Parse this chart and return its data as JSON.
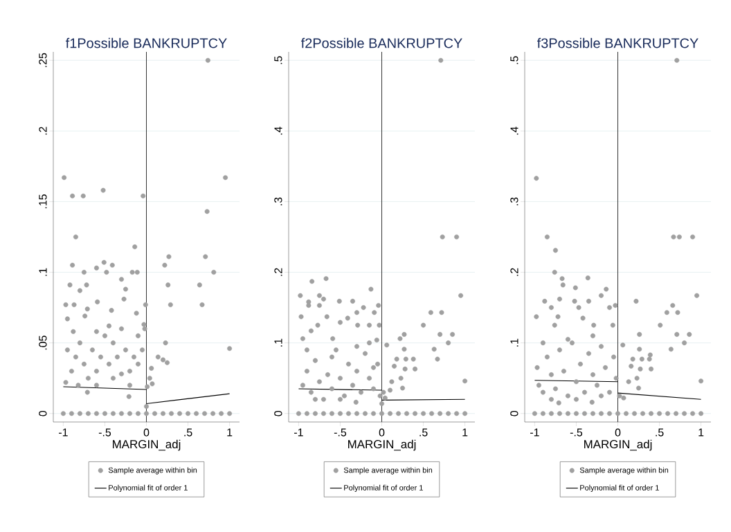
{
  "chart_data": [
    {
      "type": "scatter",
      "title": "f1Possible BANKRUPTCY",
      "xlabel": "MARGIN_adj",
      "xlim": [
        -1.12,
        1.12
      ],
      "ylim": [
        -0.006,
        0.256
      ],
      "xticks": [
        {
          "value": -1,
          "label": "-1"
        },
        {
          "value": -0.5,
          "label": "-.5"
        },
        {
          "value": 0,
          "label": "0"
        },
        {
          "value": 0.5,
          "label": ".5"
        },
        {
          "value": 1,
          "label": "1"
        }
      ],
      "yticks": [
        {
          "value": 0,
          "label": "0"
        },
        {
          "value": 0.05,
          "label": ".05"
        },
        {
          "value": 0.1,
          "label": ".1"
        },
        {
          "value": 0.15,
          "label": ".15"
        },
        {
          "value": 0.2,
          "label": ".2"
        },
        {
          "value": 0.25,
          "label": ".25"
        }
      ],
      "grid": "y",
      "legend": "bottom",
      "ref_lines": [
        {
          "axis": "x",
          "value": 0,
          "color": "#000000"
        }
      ],
      "series": [
        {
          "name": "Sample average within bin",
          "type": "scatter",
          "marker": "circle",
          "color": "#a0a0a0",
          "x": [
            0.74,
            -0.99,
            0.95,
            -0.89,
            -0.76,
            -0.52,
            -0.04,
            0.73,
            -0.85,
            -0.14,
            0.27,
            0.71,
            0.22,
            -0.89,
            -0.41,
            0.81,
            -0.75,
            -0.48,
            -0.17,
            -0.11,
            -0.51,
            -0.6,
            0.26,
            0.64,
            -0.92,
            -0.72,
            -0.3,
            -0.25,
            -0.8,
            0.29,
            0.67,
            -0.01,
            -0.97,
            -0.87,
            -0.59,
            -0.27,
            -0.71,
            -0.42,
            -0.12,
            -0.95,
            -0.74,
            -0.03,
            0.23,
            1.0,
            0.14,
            0.25,
            0.2,
            0.06,
            0.04,
            0.07,
            0.01,
            0,
            -0.21,
            -0.71,
            -0.95,
            -0.9,
            -0.85,
            -0.8,
            -0.75,
            -0.7,
            -0.65,
            -0.6,
            -0.55,
            -0.5,
            -0.45,
            -0.4,
            -0.35,
            -0.3,
            -0.25,
            -0.2,
            -0.15,
            -0.1,
            -0.05,
            -0.02,
            -0.97,
            -0.82,
            -0.6,
            -0.4,
            -0.2,
            -0.6,
            -0.45,
            -0.3,
            -0.1,
            -0.88,
            -1,
            -0.9,
            -0.8,
            -0.7,
            -0.6,
            -0.5,
            -0.4,
            -0.3,
            -0.2,
            -0.1,
            0,
            0.1,
            0.2,
            0.3,
            0.4,
            0.5,
            0.6,
            0.7,
            0.8,
            0.9,
            1
          ],
          "values": [
            0.25,
            0.167,
            0.167,
            0.154,
            0.154,
            0.158,
            0.154,
            0.143,
            0.125,
            0.118,
            0.111,
            0.111,
            0.105,
            0.105,
            0.105,
            0.1,
            0.1,
            0.1,
            0.1,
            0.1,
            0.107,
            0.103,
            0.091,
            0.091,
            0.091,
            0.091,
            0.095,
            0.088,
            0.087,
            0.077,
            0.077,
            0.077,
            0.077,
            0.077,
            0.079,
            0.081,
            0.074,
            0.073,
            0.071,
            0.067,
            0.069,
            0.063,
            0.05,
            0.046,
            0.04,
            0.036,
            0.038,
            0.032,
            0.025,
            0.021,
            0.019,
            0.005,
            0.012,
            0.015,
            0.045,
            0.03,
            0.04,
            0.05,
            0.035,
            0.025,
            0.045,
            0.03,
            0.04,
            0.055,
            0.035,
            0.05,
            0.04,
            0.06,
            0.045,
            0.03,
            0.04,
            0.055,
            0.045,
            0.06,
            0.022,
            0.02,
            0.02,
            0.025,
            0.02,
            0.058,
            0.062,
            0.028,
            0.035,
            0.058,
            0,
            0,
            0,
            0,
            0,
            0,
            0,
            0,
            0,
            0,
            0,
            0,
            0,
            0,
            0,
            0,
            0,
            0,
            0,
            0,
            0
          ]
        },
        {
          "name": "Polynomial fit of order 1",
          "type": "line",
          "marker": "none",
          "line_style": "solid",
          "color": "#000000",
          "x": [
            -1,
            0
          ],
          "values": [
            0.019,
            0.017
          ]
        },
        {
          "type": "line",
          "marker": "none",
          "line_style": "solid",
          "color": "#000000",
          "x": [
            0,
            1
          ],
          "values": [
            0.007,
            0.014
          ]
        }
      ]
    },
    {
      "type": "scatter",
      "title": "f2Possible BANKRUPTCY",
      "xlabel": "MARGIN_adj",
      "xlim": [
        -1.12,
        1.12
      ],
      "ylim": [
        -0.012,
        0.512
      ],
      "xticks": [
        {
          "value": -1,
          "label": "-1"
        },
        {
          "value": -0.5,
          "label": "-.5"
        },
        {
          "value": 0,
          "label": "0"
        },
        {
          "value": 0.5,
          "label": ".5"
        },
        {
          "value": 1,
          "label": "1"
        }
      ],
      "yticks": [
        {
          "value": 0,
          "label": "0"
        },
        {
          "value": 0.1,
          "label": ".1"
        },
        {
          "value": 0.2,
          "label": ".2"
        },
        {
          "value": 0.3,
          "label": ".3"
        },
        {
          "value": 0.4,
          "label": ".4"
        },
        {
          "value": 0.5,
          "label": ".5"
        }
      ],
      "grid": "y",
      "legend": "bottom",
      "ref_lines": [
        {
          "axis": "x",
          "value": 0,
          "color": "#000000"
        }
      ],
      "series": [
        {
          "name": "Sample average within bin",
          "type": "scatter",
          "marker": "circle",
          "color": "#a0a0a0",
          "x": [
            0.71,
            0.73,
            0.9,
            0.95,
            -0.98,
            -0.84,
            -0.67,
            -0.13,
            -0.88,
            -0.88,
            -0.75,
            -0.7,
            -0.75,
            -0.51,
            -0.35,
            -0.22,
            -0.04,
            -0.3,
            -0.09,
            0.59,
            0.72,
            -0.97,
            -0.66,
            -0.41,
            0.5,
            -0.03,
            -0.77,
            -0.5,
            -0.15,
            -0.29,
            0.7,
            0.85,
            0.27,
            0.22,
            0.8,
            0.06,
            0.63,
            0.27,
            0.67,
            0.18,
            0.29,
            0.38,
            0.4,
            0.28,
            0.15,
            0.23,
            0.25,
            1.0,
            0.12,
            0.1,
            0,
            -0.31,
            -0.95,
            -0.85,
            -0.59,
            -0.06,
            -0.15,
            -0.95,
            -0.9,
            -0.85,
            -0.8,
            -0.75,
            -0.7,
            -0.65,
            -0.6,
            -0.55,
            -0.5,
            -0.45,
            -0.4,
            -0.35,
            -0.3,
            -0.25,
            -0.2,
            -0.15,
            -0.1,
            -0.05,
            -0.02,
            -0.9,
            -0.6,
            -0.3,
            -0.8,
            -0.5,
            -0.1,
            0.02,
            0.04,
            -1,
            -0.9,
            -0.8,
            -0.7,
            -0.6,
            -0.5,
            -0.4,
            -0.3,
            -0.2,
            -0.1,
            0,
            0.1,
            0.2,
            0.3,
            0.4,
            0.5,
            0.6,
            0.7,
            0.8,
            0.9,
            1
          ],
          "values": [
            0.5,
            0.25,
            0.25,
            0.167,
            0.167,
            0.187,
            0.191,
            0.176,
            0.158,
            0.153,
            0.167,
            0.162,
            0.153,
            0.159,
            0.159,
            0.15,
            0.153,
            0.143,
            0.143,
            0.143,
            0.143,
            0.137,
            0.137,
            0.135,
            0.125,
            0.125,
            0.125,
            0.129,
            0.125,
            0.125,
            0.112,
            0.112,
            0.112,
            0.106,
            0.1,
            0.097,
            0.091,
            0.091,
            0.077,
            0.077,
            0.077,
            0.077,
            0.063,
            0.063,
            0.067,
            0.05,
            0.036,
            0.046,
            0.045,
            0.033,
            0.014,
            0.016,
            0.106,
            0.117,
            0.106,
            0.104,
            0.1,
            0.04,
            0.06,
            0.03,
            0.075,
            0.045,
            0.02,
            0.055,
            0.035,
            0.09,
            0.05,
            0.025,
            0.07,
            0.04,
            0.06,
            0.03,
            0.085,
            0.05,
            0.035,
            0.07,
            0.025,
            0.09,
            0.08,
            0.095,
            0.02,
            0.02,
            0.065,
            0.03,
            0.022,
            0,
            0,
            0,
            0,
            0,
            0,
            0,
            0,
            0,
            0,
            0,
            0,
            0,
            0,
            0,
            0,
            0,
            0,
            0,
            0,
            0
          ]
        },
        {
          "name": "Polynomial fit of order 1",
          "type": "line",
          "marker": "none",
          "line_style": "solid",
          "color": "#000000",
          "x": [
            -1,
            0
          ],
          "values": [
            0.035,
            0.033
          ]
        },
        {
          "type": "line",
          "marker": "none",
          "line_style": "solid",
          "color": "#000000",
          "x": [
            0,
            1
          ],
          "values": [
            0.019,
            0.02
          ]
        }
      ]
    },
    {
      "type": "scatter",
      "title": "f3Possible BANKRUPTCY",
      "xlabel": "MARGIN_adj",
      "xlim": [
        -1.12,
        1.12
      ],
      "ylim": [
        -0.012,
        0.512
      ],
      "xticks": [
        {
          "value": -1,
          "label": "-1"
        },
        {
          "value": -0.5,
          "label": "-.5"
        },
        {
          "value": 0,
          "label": "0"
        },
        {
          "value": 0.5,
          "label": ".5"
        },
        {
          "value": 1,
          "label": "1"
        }
      ],
      "yticks": [
        {
          "value": 0,
          "label": "0"
        },
        {
          "value": 0.1,
          "label": ".1"
        },
        {
          "value": 0.2,
          "label": ".2"
        },
        {
          "value": 0.3,
          "label": ".3"
        },
        {
          "value": 0.4,
          "label": ".4"
        },
        {
          "value": 0.5,
          "label": ".5"
        }
      ],
      "grid": "y",
      "legend": "bottom",
      "ref_lines": [
        {
          "axis": "x",
          "value": 0,
          "color": "#000000"
        }
      ],
      "series": [
        {
          "name": "Sample average within bin",
          "type": "scatter",
          "marker": "circle",
          "color": "#a0a0a0",
          "x": [
            0.71,
            -0.98,
            -0.85,
            0.67,
            0.74,
            0.9,
            -0.75,
            -0.76,
            -0.67,
            -0.36,
            -0.66,
            -0.51,
            -0.14,
            -0.2,
            0.95,
            0.22,
            -0.88,
            -0.7,
            -0.52,
            -0.35,
            0.66,
            -0.1,
            -0.03,
            -0.8,
            -0.47,
            0.59,
            0.72,
            -0.98,
            -0.72,
            -0.42,
            0.51,
            -0.76,
            -0.29,
            -0.06,
            0.71,
            0.86,
            0.26,
            0.8,
            0.06,
            0.64,
            0.26,
            0.39,
            0.18,
            0.29,
            0.38,
            0.4,
            0.27,
            0.16,
            0.23,
            0.25,
            1.0,
            0.13,
            0.07,
            -0.31,
            -0.71,
            -0.97,
            -0.95,
            -0.9,
            -0.9,
            -0.85,
            -0.8,
            -0.75,
            -0.7,
            -0.65,
            -0.6,
            -0.55,
            -0.5,
            -0.45,
            -0.4,
            -0.35,
            -0.3,
            -0.25,
            -0.2,
            -0.15,
            -0.1,
            -0.05,
            -0.02,
            -0.8,
            -0.5,
            -0.2,
            0.02,
            -0.6,
            -0.3,
            -1,
            -0.9,
            -0.8,
            -0.7,
            -0.6,
            -0.5,
            -0.4,
            -0.3,
            -0.2,
            -0.1,
            0,
            0.1,
            0.2,
            0.3,
            0.4,
            0.5,
            0.6,
            0.7,
            0.8,
            0.9,
            1
          ],
          "values": [
            0.5,
            0.333,
            0.25,
            0.25,
            0.25,
            0.25,
            0.231,
            0.2,
            0.191,
            0.192,
            0.182,
            0.178,
            0.176,
            0.167,
            0.167,
            0.159,
            0.159,
            0.162,
            0.159,
            0.159,
            0.153,
            0.15,
            0.153,
            0.15,
            0.15,
            0.143,
            0.143,
            0.137,
            0.137,
            0.135,
            0.125,
            0.125,
            0.125,
            0.125,
            0.112,
            0.112,
            0.112,
            0.1,
            0.097,
            0.091,
            0.091,
            0.083,
            0.077,
            0.077,
            0.077,
            0.063,
            0.063,
            0.067,
            0.05,
            0.036,
            0.046,
            0.045,
            0.022,
            0.016,
            0.015,
            0.065,
            0.04,
            0.1,
            0.03,
            0.08,
            0.055,
            0.035,
            0.09,
            0.06,
            0.025,
            0.1,
            0.045,
            0.07,
            0.03,
            0.085,
            0.055,
            0.04,
            0.095,
            0.065,
            0.03,
            0.08,
            0.05,
            0.02,
            0.02,
            0.025,
            0.025,
            0.105,
            0.11,
            0,
            0,
            0,
            0,
            0,
            0,
            0,
            0,
            0,
            0,
            0,
            0,
            0,
            0,
            0,
            0,
            0,
            0,
            0,
            0,
            0
          ]
        },
        {
          "name": "Polynomial fit of order 1",
          "type": "line",
          "marker": "none",
          "line_style": "solid",
          "color": "#000000",
          "x": [
            -1,
            0
          ],
          "values": [
            0.047,
            0.045
          ]
        },
        {
          "type": "line",
          "marker": "none",
          "line_style": "solid",
          "color": "#000000",
          "x": [
            0,
            1
          ],
          "values": [
            0.029,
            0.02
          ]
        }
      ]
    }
  ]
}
